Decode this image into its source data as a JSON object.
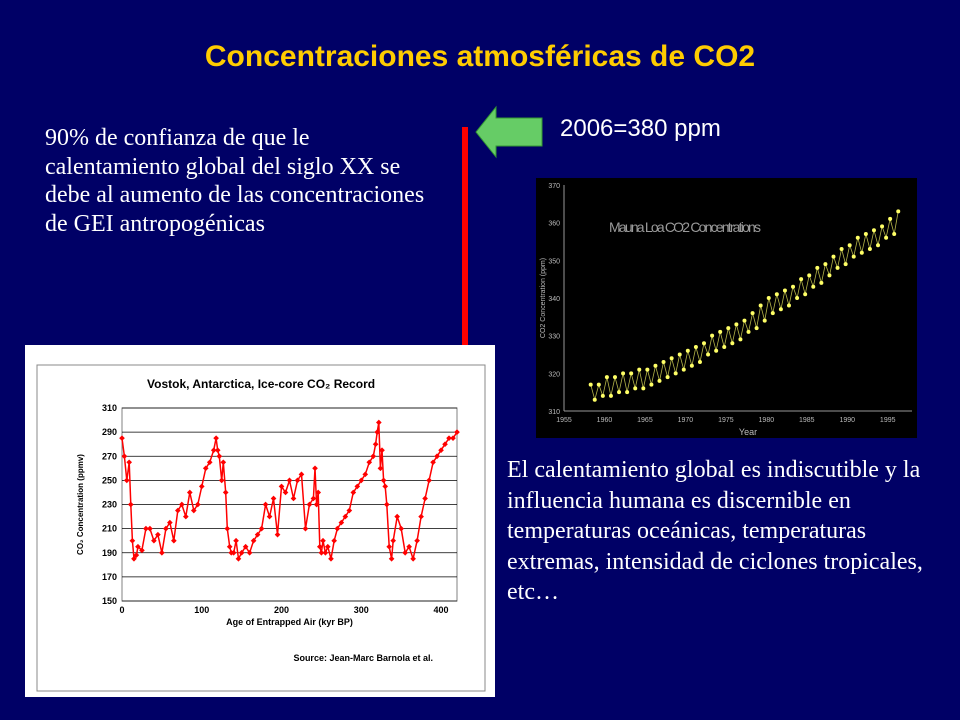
{
  "slide": {
    "title": "Concentraciones atmosféricas de CO2",
    "paragraph_left": "90% de confianza de que le calentamiento global del siglo XX se debe al aumento de las concentraciones de GEI antropogénicas",
    "paragraph_right": "El calentamiento global es indiscutible y la influencia humana es discernible en temperaturas oceánicas, temperaturas extremas, intensidad de ciclones tropicales, etc…",
    "annotation": "2006=380 ppm",
    "colors": {
      "background": "#000066",
      "title": "#ffcc00",
      "arrow": "#66cc66",
      "bar": "#ff0000"
    }
  },
  "chart_data": [
    {
      "type": "line",
      "title": "Vostok, Antarctica, Ice-core CO₂ Record",
      "xlabel": "Age of Entrapped Air (kyr BP)",
      "ylabel": "CO₂ Concentration (ppmv)",
      "source": "Source: Jean-Marc Barnola et al.",
      "xlim": [
        0,
        420
      ],
      "ylim": [
        150,
        310
      ],
      "xticks": [
        0,
        100,
        200,
        300,
        400
      ],
      "yticks": [
        150,
        170,
        190,
        210,
        230,
        250,
        270,
        290,
        310
      ],
      "grid": true,
      "color": "#ff0000",
      "x": [
        0,
        3,
        6,
        9,
        11,
        13,
        15,
        18,
        20,
        25,
        30,
        35,
        40,
        45,
        50,
        55,
        60,
        65,
        70,
        75,
        80,
        85,
        90,
        95,
        100,
        105,
        110,
        115,
        118,
        120,
        122,
        125,
        127,
        130,
        132,
        135,
        137,
        140,
        143,
        146,
        150,
        155,
        160,
        165,
        170,
        175,
        180,
        185,
        190,
        195,
        200,
        205,
        210,
        215,
        220,
        225,
        230,
        235,
        240,
        242,
        244,
        246,
        248,
        250,
        252,
        255,
        258,
        262,
        266,
        270,
        275,
        280,
        285,
        290,
        295,
        300,
        305,
        310,
        315,
        318,
        320,
        322,
        324,
        326,
        328,
        330,
        332,
        335,
        338,
        340,
        345,
        350,
        355,
        360,
        365,
        370,
        375,
        380,
        385,
        390,
        395,
        400,
        405,
        410,
        415,
        420
      ],
      "y": [
        285,
        270,
        250,
        265,
        230,
        200,
        185,
        188,
        195,
        192,
        210,
        210,
        200,
        205,
        190,
        210,
        215,
        200,
        225,
        230,
        220,
        240,
        225,
        230,
        245,
        260,
        265,
        275,
        285,
        275,
        270,
        250,
        265,
        240,
        210,
        195,
        190,
        190,
        200,
        185,
        190,
        195,
        190,
        200,
        205,
        210,
        230,
        220,
        235,
        205,
        245,
        240,
        250,
        235,
        250,
        255,
        210,
        230,
        235,
        260,
        230,
        240,
        195,
        190,
        200,
        190,
        195,
        185,
        200,
        210,
        215,
        220,
        225,
        240,
        245,
        250,
        255,
        265,
        270,
        280,
        290,
        298,
        260,
        275,
        250,
        245,
        230,
        195,
        185,
        200,
        220,
        210,
        190,
        195,
        185,
        200,
        220,
        235,
        250,
        265,
        270,
        275,
        280,
        285,
        285,
        290
      ]
    },
    {
      "type": "scatter",
      "title": "Mauna Loa CO2 Concentrations",
      "xlabel": "Year",
      "ylabel": "CO2 Concentration (ppm)",
      "xlim": [
        1955,
        1998
      ],
      "ylim": [
        310,
        370
      ],
      "xticks": [
        1955,
        1960,
        1965,
        1970,
        1975,
        1980,
        1985,
        1990,
        1995
      ],
      "yticks": [
        310,
        320,
        330,
        340,
        350,
        360,
        370
      ],
      "color": "#ffff66",
      "x": [
        1958.3,
        1958.8,
        1959.3,
        1959.8,
        1960.3,
        1960.8,
        1961.3,
        1961.8,
        1962.3,
        1962.8,
        1963.3,
        1963.8,
        1964.3,
        1964.8,
        1965.3,
        1965.8,
        1966.3,
        1966.8,
        1967.3,
        1967.8,
        1968.3,
        1968.8,
        1969.3,
        1969.8,
        1970.3,
        1970.8,
        1971.3,
        1971.8,
        1972.3,
        1972.8,
        1973.3,
        1973.8,
        1974.3,
        1974.8,
        1975.3,
        1975.8,
        1976.3,
        1976.8,
        1977.3,
        1977.8,
        1978.3,
        1978.8,
        1979.3,
        1979.8,
        1980.3,
        1980.8,
        1981.3,
        1981.8,
        1982.3,
        1982.8,
        1983.3,
        1983.8,
        1984.3,
        1984.8,
        1985.3,
        1985.8,
        1986.3,
        1986.8,
        1987.3,
        1987.8,
        1988.3,
        1988.8,
        1989.3,
        1989.8,
        1990.3,
        1990.8,
        1991.3,
        1991.8,
        1992.3,
        1992.8,
        1993.3,
        1993.8,
        1994.3,
        1994.8,
        1995.3,
        1995.8,
        1996.3
      ],
      "y": [
        317,
        313,
        317,
        314,
        319,
        314,
        319,
        315,
        320,
        315,
        320,
        316,
        321,
        316,
        321,
        317,
        322,
        318,
        323,
        319,
        324,
        320,
        325,
        321,
        326,
        322,
        327,
        323,
        328,
        325,
        330,
        326,
        331,
        327,
        332,
        328,
        333,
        329,
        334,
        331,
        336,
        332,
        338,
        334,
        340,
        336,
        341,
        337,
        342,
        338,
        343,
        340,
        345,
        341,
        346,
        343,
        348,
        344,
        349,
        346,
        351,
        348,
        353,
        349,
        354,
        351,
        356,
        352,
        357,
        353,
        358,
        354,
        359,
        356,
        361,
        357,
        363
      ]
    }
  ]
}
